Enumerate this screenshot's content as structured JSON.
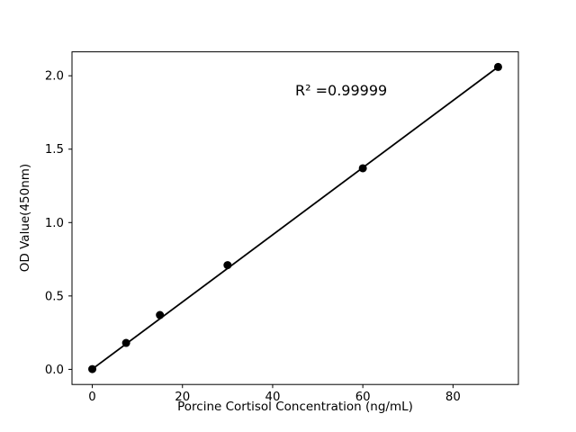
{
  "chart_data": {
    "type": "scatter",
    "title": "",
    "xlabel": "Porcine Cortisol Concentration (ng/mL)",
    "ylabel": "OD Value(450nm)",
    "annotation": "R² =0.99999",
    "points": [
      [
        0,
        0.002
      ],
      [
        7.5,
        0.18
      ],
      [
        15,
        0.37
      ],
      [
        30,
        0.71
      ],
      [
        60,
        1.37
      ],
      [
        90,
        2.06
      ]
    ],
    "fit_line": {
      "x1": 0,
      "y1": 0.002,
      "x2": 90,
      "y2": 2.06
    },
    "xtick_values": [
      0,
      20,
      40,
      60,
      80
    ],
    "xtick_labels": [
      "0",
      "20",
      "40",
      "60",
      "80"
    ],
    "ytick_values": [
      0.0,
      0.5,
      1.0,
      1.5,
      2.0
    ],
    "ytick_labels": [
      "0.0",
      "0.5",
      "1.0",
      "1.5",
      "2.0"
    ],
    "xlim": [
      -4.5,
      94.5
    ],
    "ylim": [
      -0.103,
      2.163
    ],
    "marker_color": "#000000",
    "line_color": "#000000",
    "axis_color": "#000000",
    "background_color": "#ffffff",
    "grid": false,
    "legend": null
  }
}
